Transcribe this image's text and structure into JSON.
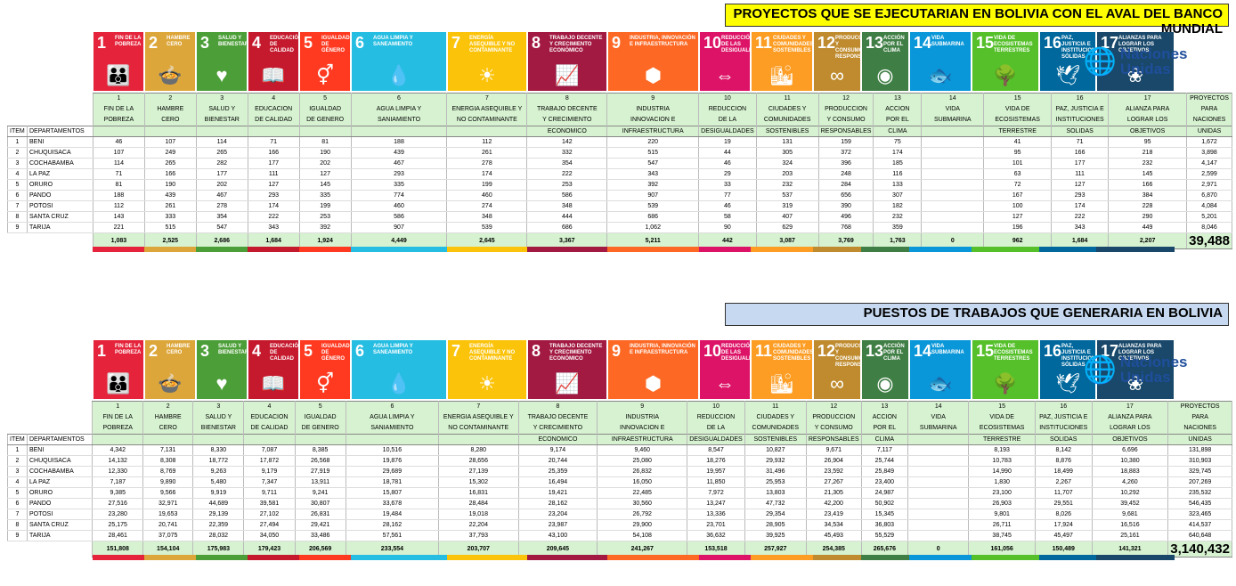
{
  "colors": [
    "#e5243b",
    "#dda63a",
    "#4c9f38",
    "#c5192d",
    "#ff3a21",
    "#26bde2",
    "#fcc30b",
    "#a21942",
    "#fd6925",
    "#dd1367",
    "#fd9d24",
    "#bf8b2e",
    "#3f7e44",
    "#0a97d9",
    "#56c02b",
    "#00689d",
    "#19486a"
  ],
  "sdg_icons": [
    {
      "num": "1",
      "title": "FIN DE LA POBREZA",
      "icon": "people-icon",
      "glyph": "👪"
    },
    {
      "num": "2",
      "title": "HAMBRE CERO",
      "icon": "bowl-icon",
      "glyph": "🍲"
    },
    {
      "num": "3",
      "title": "SALUD Y BIENESTAR",
      "icon": "heartbeat-icon",
      "glyph": "♥"
    },
    {
      "num": "4",
      "title": "EDUCACIÓN DE CALIDAD",
      "icon": "book-icon",
      "glyph": "📖"
    },
    {
      "num": "5",
      "title": "IGUALDAD DE GÉNERO",
      "icon": "gender-icon",
      "glyph": "⚥"
    },
    {
      "num": "6",
      "title": "AGUA LIMPIA Y SANEAMIENTO",
      "icon": "water-icon",
      "glyph": "💧"
    },
    {
      "num": "7",
      "title": "ENERGÍA ASEQUIBLE Y NO CONTAMINANTE",
      "icon": "sun-icon",
      "glyph": "☀"
    },
    {
      "num": "8",
      "title": "TRABAJO DECENTE Y CRECIMIENTO ECONÓMICO",
      "icon": "growth-chart-icon",
      "glyph": "📈"
    },
    {
      "num": "9",
      "title": "INDUSTRIA, INNOVACIÓN E INFRAESTRUCTURA",
      "icon": "cubes-icon",
      "glyph": "⬢"
    },
    {
      "num": "10",
      "title": "REDUCCIÓN DE LAS DESIGUALDADES",
      "icon": "equal-icon",
      "glyph": "⇔"
    },
    {
      "num": "11",
      "title": "CIUDADES Y COMUNIDADES SOSTENIBLES",
      "icon": "city-icon",
      "glyph": "🏙"
    },
    {
      "num": "12",
      "title": "PRODUCCIÓN Y CONSUMO RESPONSABLES",
      "icon": "infinity-icon",
      "glyph": "∞"
    },
    {
      "num": "13",
      "title": "ACCIÓN POR EL CLIMA",
      "icon": "eye-globe-icon",
      "glyph": "◉"
    },
    {
      "num": "14",
      "title": "VIDA SUBMARINA",
      "icon": "fish-icon",
      "glyph": "🐟"
    },
    {
      "num": "15",
      "title": "VIDA DE ECOSISTEMAS TERRESTRES",
      "icon": "tree-icon",
      "glyph": "🌳"
    },
    {
      "num": "16",
      "title": "PAZ, JUSTICIA E INSTITUCIONES SÓLIDAS",
      "icon": "dove-icon",
      "glyph": "🕊"
    },
    {
      "num": "17",
      "title": "ALIANZAS PARA LOGRAR LOS OBJETIVOS",
      "icon": "rings-icon",
      "glyph": "❀"
    }
  ],
  "un_logo": {
    "text": "Naciones Unidas",
    "icon": "un-globe-icon"
  },
  "headers": [
    [
      "1",
      "FIN DE LA",
      "POBREZA",
      ""
    ],
    [
      "2",
      "HAMBRE",
      "CERO",
      ""
    ],
    [
      "3",
      "SALUD Y",
      "BIENESTAR",
      ""
    ],
    [
      "4",
      "EDUCACION",
      "DE CALIDAD",
      ""
    ],
    [
      "5",
      "IGUALDAD",
      "DE GENERO",
      ""
    ],
    [
      "6",
      "AGUA LIMPIA Y",
      "SANIAMIENTO",
      ""
    ],
    [
      "7",
      "ENERGIA ASEQUIBLE Y",
      "NO CONTAMINANTE",
      ""
    ],
    [
      "8",
      "TRABAJO DECENTE",
      "Y CRECIMIENTO",
      "ECONOMICO"
    ],
    [
      "9",
      "INDUSTRIA",
      "INNOVACION E",
      "INFRAESTRUCTURA"
    ],
    [
      "10",
      "REDUCCION",
      "DE LA",
      "DESIGUALDADES"
    ],
    [
      "11",
      "CIUDADES Y",
      "COMUNIDADES",
      "SOSTENIBLES"
    ],
    [
      "12",
      "PRODUCCION",
      "Y CONSUMO",
      "RESPONSABLES"
    ],
    [
      "13",
      "ACCION",
      "POR EL",
      "CLIMA"
    ],
    [
      "14",
      "VIDA",
      "SUBMARINA",
      ""
    ],
    [
      "15",
      "VIDA DE",
      "ECOSISTEMAS",
      "TERRESTRE"
    ],
    [
      "16",
      "PAZ, JUSTICIA E",
      "INSTITUCIONES",
      "SOLIDAS"
    ],
    [
      "17",
      "ALIANZA PARA",
      "LOGRAR LOS",
      "OBJETIVOS"
    ],
    [
      "PROYECTOS",
      "PARA",
      "NACIONES",
      "UNIDAS"
    ]
  ],
  "col_item": "ITEM",
  "col_dept": "DEPARTAMENTOS",
  "sections": [
    {
      "title": "PROYECTOS QUE SE EJECUTARIAN EN BOLIVIA CON EL AVAL DEL BANCO MUNDIAL",
      "rows": [
        {
          "item": "1",
          "dept": "BENI",
          "values": [
            "46",
            "107",
            "114",
            "71",
            "81",
            "188",
            "112",
            "142",
            "220",
            "19",
            "131",
            "159",
            "75",
            "",
            "41",
            "71",
            "95",
            "1,672"
          ]
        },
        {
          "item": "2",
          "dept": "CHUQUISACA",
          "values": [
            "107",
            "249",
            "265",
            "166",
            "190",
            "439",
            "261",
            "332",
            "515",
            "44",
            "305",
            "372",
            "174",
            "",
            "95",
            "166",
            "218",
            "3,898"
          ]
        },
        {
          "item": "3",
          "dept": "COCHABAMBA",
          "values": [
            "114",
            "265",
            "282",
            "177",
            "202",
            "467",
            "278",
            "354",
            "547",
            "46",
            "324",
            "396",
            "185",
            "",
            "101",
            "177",
            "232",
            "4,147"
          ]
        },
        {
          "item": "4",
          "dept": "LA PAZ",
          "values": [
            "71",
            "166",
            "177",
            "111",
            "127",
            "293",
            "174",
            "222",
            "343",
            "29",
            "203",
            "248",
            "116",
            "",
            "63",
            "111",
            "145",
            "2,599"
          ]
        },
        {
          "item": "5",
          "dept": "ORURO",
          "values": [
            "81",
            "190",
            "202",
            "127",
            "145",
            "335",
            "199",
            "253",
            "392",
            "33",
            "232",
            "284",
            "133",
            "",
            "72",
            "127",
            "166",
            "2,971"
          ]
        },
        {
          "item": "6",
          "dept": "PANDO",
          "values": [
            "188",
            "439",
            "467",
            "293",
            "335",
            "774",
            "460",
            "586",
            "907",
            "77",
            "537",
            "656",
            "307",
            "",
            "167",
            "293",
            "384",
            "6,870"
          ]
        },
        {
          "item": "7",
          "dept": "POTOSI",
          "values": [
            "112",
            "261",
            "278",
            "174",
            "199",
            "460",
            "274",
            "348",
            "539",
            "46",
            "319",
            "390",
            "182",
            "",
            "100",
            "174",
            "228",
            "4,084"
          ]
        },
        {
          "item": "8",
          "dept": "SANTA CRUZ",
          "values": [
            "143",
            "333",
            "354",
            "222",
            "253",
            "586",
            "348",
            "444",
            "686",
            "58",
            "407",
            "496",
            "232",
            "",
            "127",
            "222",
            "290",
            "5,201"
          ]
        },
        {
          "item": "9",
          "dept": "TARIJA",
          "values": [
            "221",
            "515",
            "547",
            "343",
            "392",
            "907",
            "539",
            "686",
            "1,062",
            "90",
            "629",
            "768",
            "359",
            "",
            "196",
            "343",
            "449",
            "8,046"
          ]
        }
      ],
      "totals": [
        "1,083",
        "2,525",
        "2,686",
        "1,684",
        "1,924",
        "4,449",
        "2,645",
        "3,367",
        "5,211",
        "442",
        "3,087",
        "3,769",
        "1,763",
        "0",
        "962",
        "1,684",
        "2,207",
        "39,488"
      ]
    },
    {
      "title": "PUESTOS DE TRABAJOS QUE GENERARIA EN BOLIVIA",
      "rows": [
        {
          "item": "1",
          "dept": "BENI",
          "values": [
            "4,342",
            "7,131",
            "8,330",
            "7,087",
            "8,385",
            "10,516",
            "8,280",
            "9,174",
            "9,460",
            "8,547",
            "10,827",
            "9,671",
            "7,117",
            "",
            "8,193",
            "8,142",
            "6,696",
            "131,898"
          ]
        },
        {
          "item": "2",
          "dept": "CHUQUISACA",
          "values": [
            "14,132",
            "8,308",
            "18,772",
            "17,872",
            "26,568",
            "19,876",
            "28,656",
            "20,744",
            "25,080",
            "18,276",
            "29,932",
            "26,904",
            "25,744",
            "",
            "10,783",
            "8,876",
            "10,380",
            "310,903"
          ]
        },
        {
          "item": "3",
          "dept": "COCHABAMBA",
          "values": [
            "12,330",
            "8,769",
            "9,263",
            "9,179",
            "27,919",
            "29,689",
            "27,139",
            "25,359",
            "26,832",
            "19,957",
            "31,496",
            "23,592",
            "25,849",
            "",
            "14,990",
            "18,499",
            "18,883",
            "329,745"
          ]
        },
        {
          "item": "4",
          "dept": "LA PAZ",
          "values": [
            "7,187",
            "9,890",
            "5,480",
            "7,347",
            "13,911",
            "18,781",
            "15,302",
            "16,494",
            "16,050",
            "11,850",
            "25,953",
            "27,267",
            "23,400",
            "",
            "1,830",
            "2,267",
            "4,260",
            "207,269"
          ]
        },
        {
          "item": "5",
          "dept": "ORURO",
          "values": [
            "9,385",
            "9,566",
            "9,919",
            "9,711",
            "9,241",
            "15,807",
            "16,831",
            "19,421",
            "22,485",
            "7,972",
            "13,803",
            "21,305",
            "24,987",
            "",
            "23,100",
            "11,707",
            "10,292",
            "235,532"
          ]
        },
        {
          "item": "6",
          "dept": "PANDO",
          "values": [
            "27,516",
            "32,971",
            "44,689",
            "39,581",
            "30,807",
            "33,678",
            "28,484",
            "28,162",
            "30,560",
            "13,247",
            "47,732",
            "42,200",
            "50,902",
            "",
            "26,903",
            "29,551",
            "39,452",
            "546,435"
          ]
        },
        {
          "item": "7",
          "dept": "POTOSI",
          "values": [
            "23,280",
            "19,653",
            "29,139",
            "27,102",
            "26,831",
            "19,484",
            "19,018",
            "23,204",
            "26,792",
            "13,336",
            "29,354",
            "23,419",
            "15,345",
            "",
            "9,801",
            "8,026",
            "9,681",
            "323,465"
          ]
        },
        {
          "item": "8",
          "dept": "SANTA CRUZ",
          "values": [
            "25,175",
            "20,741",
            "22,359",
            "27,494",
            "29,421",
            "28,162",
            "22,204",
            "23,987",
            "29,900",
            "23,701",
            "28,905",
            "34,534",
            "36,803",
            "",
            "26,711",
            "17,924",
            "16,516",
            "414,537"
          ]
        },
        {
          "item": "9",
          "dept": "TARIJA",
          "values": [
            "28,461",
            "37,075",
            "28,032",
            "34,050",
            "33,486",
            "57,561",
            "37,793",
            "43,100",
            "54,108",
            "36,632",
            "39,925",
            "45,493",
            "55,529",
            "",
            "38,745",
            "45,497",
            "25,161",
            "640,648"
          ]
        }
      ],
      "totals": [
        "151,808",
        "154,104",
        "175,983",
        "179,423",
        "206,569",
        "233,554",
        "203,707",
        "209,645",
        "241,267",
        "153,518",
        "257,927",
        "254,385",
        "265,676",
        "0",
        "161,056",
        "150,489",
        "141,321",
        "3,140,432"
      ]
    }
  ]
}
